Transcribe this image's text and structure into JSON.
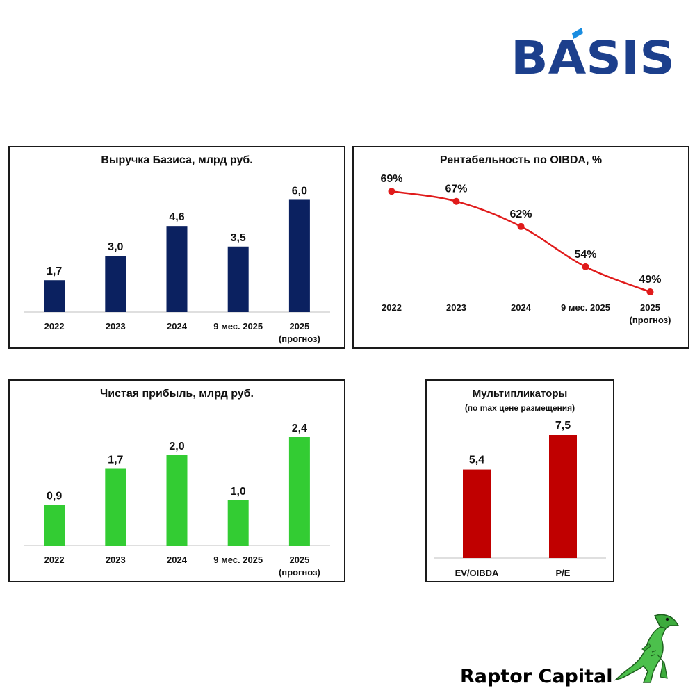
{
  "brand": {
    "logo_text": "BÁSIS",
    "footer_text": "Raptor Capital",
    "watermark_text": "Raptor Capital"
  },
  "colors": {
    "navy": "#0b2160",
    "red_line": "#e01b1b",
    "green": "#33cc33",
    "dark_red": "#c00000",
    "axis": "#bfbfbf"
  },
  "panels": {
    "revenue": {
      "title": "Выручка Базиса, млрд руб."
    },
    "margin": {
      "title": "Рентабельность по OIBDA, %"
    },
    "profit": {
      "title": "Чистая прибыль, млрд руб."
    },
    "multiples": {
      "title": "Мультипликаторы",
      "subtitle": "(по max цене размещения)"
    }
  },
  "chart_data": [
    {
      "id": "revenue",
      "type": "bar",
      "title": "Выручка Базиса, млрд руб.",
      "categories": [
        [
          "2022"
        ],
        [
          "2023"
        ],
        [
          "2024"
        ],
        [
          "9 мес. 2025"
        ],
        [
          "2025",
          "(прогноз)"
        ]
      ],
      "values": [
        1.7,
        3.0,
        4.6,
        3.5,
        6.0
      ],
      "labels": [
        "1,7",
        "3,0",
        "4,6",
        "3,5",
        "6,0"
      ],
      "ylim": [
        0,
        6.5
      ],
      "color": "#0b2160"
    },
    {
      "id": "margin",
      "type": "line",
      "title": "Рентабельность по OIBDA, %",
      "categories": [
        [
          "2022"
        ],
        [
          "2023"
        ],
        [
          "2024"
        ],
        [
          "9 мес. 2025"
        ],
        [
          "2025",
          "(прогноз)"
        ]
      ],
      "values": [
        69,
        67,
        62,
        54,
        49
      ],
      "labels": [
        "69%",
        "67%",
        "62%",
        "54%",
        "49%"
      ],
      "ylim": [
        45,
        70
      ],
      "color": "#e01b1b"
    },
    {
      "id": "profit",
      "type": "bar",
      "title": "Чистая прибыль, млрд руб.",
      "categories": [
        [
          "2022"
        ],
        [
          "2023"
        ],
        [
          "2024"
        ],
        [
          "9 мес. 2025"
        ],
        [
          "2025",
          "(прогноз)"
        ]
      ],
      "values": [
        0.9,
        1.7,
        2.0,
        1.0,
        2.4
      ],
      "labels": [
        "0,9",
        "1,7",
        "2,0",
        "1,0",
        "2,4"
      ],
      "ylim": [
        0,
        2.6
      ],
      "color": "#33cc33"
    },
    {
      "id": "multiples",
      "type": "bar",
      "title": "Мультипликаторы",
      "subtitle": "(по max цене размещения)",
      "categories": [
        [
          "EV/OIBDA"
        ],
        [
          "P/E"
        ]
      ],
      "values": [
        5.4,
        7.5
      ],
      "labels": [
        "5,4",
        "7,5"
      ],
      "ylim": [
        0,
        7.5
      ],
      "color": "#c00000"
    }
  ]
}
